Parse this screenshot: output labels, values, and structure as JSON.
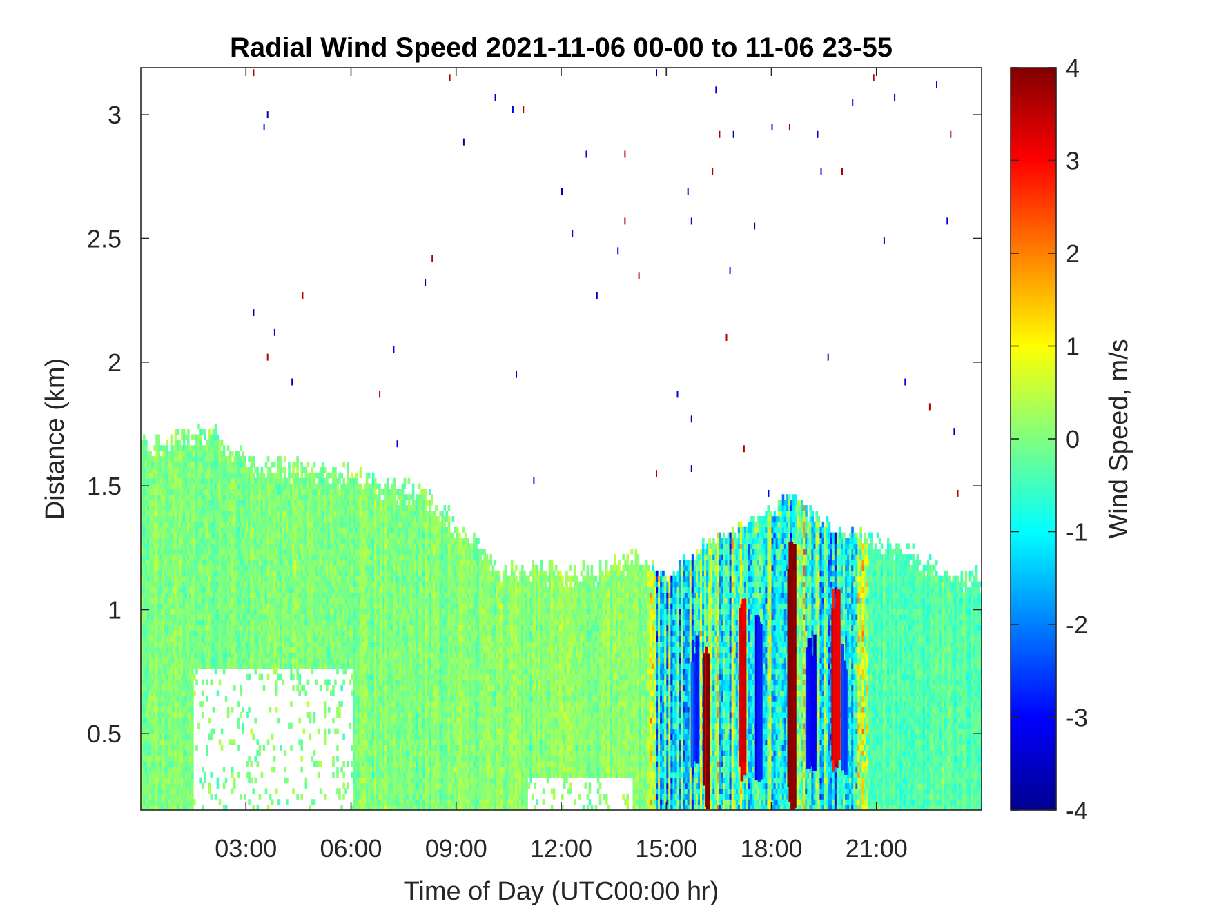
{
  "chart_data": {
    "type": "heatmap",
    "title": "Radial Wind Speed 2021-11-06 00-00 to 11-06 23-55",
    "xlabel": "Time of Day (UTC00:00 hr)",
    "ylabel": "Distance (km)",
    "colorbar_label": "Wind Speed, m/s",
    "x_range_hours": [
      0,
      24
    ],
    "y_range_km": [
      0.19,
      3.19
    ],
    "x_ticks": [
      {
        "hour": 3,
        "label": "03:00"
      },
      {
        "hour": 6,
        "label": "06:00"
      },
      {
        "hour": 9,
        "label": "09:00"
      },
      {
        "hour": 12,
        "label": "12:00"
      },
      {
        "hour": 15,
        "label": "15:00"
      },
      {
        "hour": 18,
        "label": "18:00"
      },
      {
        "hour": 21,
        "label": "21:00"
      }
    ],
    "y_ticks": [
      {
        "value": 0.5,
        "label": "0.5"
      },
      {
        "value": 1.0,
        "label": "1"
      },
      {
        "value": 1.5,
        "label": "1.5"
      },
      {
        "value": 2.0,
        "label": "2"
      },
      {
        "value": 2.5,
        "label": "2.5"
      },
      {
        "value": 3.0,
        "label": "3"
      }
    ],
    "color_range": [
      -4,
      4
    ],
    "colormap": "jet",
    "colorbar_ticks": [
      {
        "value": 4,
        "label": "4"
      },
      {
        "value": 3,
        "label": "3"
      },
      {
        "value": 2,
        "label": "2"
      },
      {
        "value": 1,
        "label": "1"
      },
      {
        "value": 0,
        "label": "0"
      },
      {
        "value": -1,
        "label": "-1"
      },
      {
        "value": -2,
        "label": "-2"
      },
      {
        "value": -3,
        "label": "-3"
      },
      {
        "value": -4,
        "label": "-4"
      }
    ],
    "signal_top_km": [
      [
        0.0,
        1.67
      ],
      [
        1.0,
        1.7
      ],
      [
        2.0,
        1.72
      ],
      [
        3.0,
        1.6
      ],
      [
        4.0,
        1.58
      ],
      [
        5.0,
        1.57
      ],
      [
        6.0,
        1.55
      ],
      [
        7.0,
        1.5
      ],
      [
        8.0,
        1.48
      ],
      [
        9.0,
        1.35
      ],
      [
        10.0,
        1.18
      ],
      [
        11.0,
        1.17
      ],
      [
        12.0,
        1.16
      ],
      [
        13.0,
        1.15
      ],
      [
        14.0,
        1.22
      ],
      [
        15.0,
        1.12
      ],
      [
        16.0,
        1.25
      ],
      [
        17.0,
        1.32
      ],
      [
        18.0,
        1.38
      ],
      [
        18.5,
        1.45
      ],
      [
        19.0,
        1.38
      ],
      [
        20.0,
        1.3
      ],
      [
        21.0,
        1.28
      ],
      [
        22.0,
        1.24
      ],
      [
        23.0,
        1.14
      ],
      [
        24.0,
        1.13
      ]
    ],
    "regions_m_per_s": [
      {
        "hours": [
          0,
          9
        ],
        "km": [
          0.19,
          1.7
        ],
        "mean_speed": 0.0
      },
      {
        "hours": [
          9,
          14.5
        ],
        "km": [
          0.19,
          1.18
        ],
        "mean_speed": 0.1
      },
      {
        "hours": [
          14.5,
          20.5
        ],
        "km": [
          0.19,
          1.45
        ],
        "mean_speed": -0.5
      },
      {
        "hours": [
          20.5,
          24
        ],
        "km": [
          0.19,
          1.28
        ],
        "mean_speed": -0.3
      }
    ],
    "strong_updrafts": [
      {
        "hour": 16.1,
        "km": [
          0.19,
          0.9
        ],
        "speed": 3.5
      },
      {
        "hour": 17.1,
        "km": [
          0.3,
          1.05
        ],
        "speed": 3.2
      },
      {
        "hour": 18.5,
        "km": [
          0.19,
          1.3
        ],
        "speed": 3.9
      },
      {
        "hour": 19.8,
        "km": [
          0.3,
          1.1
        ],
        "speed": 3.3
      }
    ],
    "strong_downdrafts": [
      {
        "hour": 15.8,
        "km": [
          0.3,
          0.9
        ],
        "speed": -2.6
      },
      {
        "hour": 17.6,
        "km": [
          0.3,
          1.0
        ],
        "speed": -2.8
      },
      {
        "hour": 19.1,
        "km": [
          0.3,
          0.9
        ],
        "speed": -3.2
      },
      {
        "hour": 20.1,
        "km": [
          0.3,
          0.9
        ],
        "speed": -2.5
      }
    ],
    "low_level_gaps": [
      {
        "hours": [
          1.5,
          6.0
        ],
        "km": [
          0.19,
          0.75
        ]
      },
      {
        "hours": [
          11.0,
          14.0
        ],
        "km": [
          0.19,
          0.32
        ]
      }
    ],
    "scattered_points": [
      [
        3.2,
        3.17
      ],
      [
        3.6,
        3.0
      ],
      [
        3.5,
        2.95
      ],
      [
        8.8,
        3.15
      ],
      [
        10.1,
        3.07
      ],
      [
        10.6,
        3.02
      ],
      [
        10.9,
        3.02
      ],
      [
        9.2,
        2.89
      ],
      [
        12.7,
        2.84
      ],
      [
        13.8,
        2.84
      ],
      [
        14.7,
        3.17
      ],
      [
        16.4,
        3.1
      ],
      [
        16.5,
        2.92
      ],
      [
        16.9,
        2.92
      ],
      [
        18.0,
        2.95
      ],
      [
        18.5,
        2.95
      ],
      [
        19.3,
        2.92
      ],
      [
        20.3,
        3.05
      ],
      [
        20.9,
        3.15
      ],
      [
        21.5,
        3.07
      ],
      [
        22.7,
        3.12
      ],
      [
        23.1,
        2.92
      ],
      [
        12.0,
        2.69
      ],
      [
        12.3,
        2.52
      ],
      [
        13.8,
        2.57
      ],
      [
        15.6,
        2.69
      ],
      [
        15.7,
        2.57
      ],
      [
        16.3,
        2.77
      ],
      [
        17.5,
        2.55
      ],
      [
        19.4,
        2.77
      ],
      [
        20.0,
        2.77
      ],
      [
        21.2,
        2.49
      ],
      [
        23.0,
        2.57
      ],
      [
        8.3,
        2.42
      ],
      [
        8.1,
        2.32
      ],
      [
        13.6,
        2.45
      ],
      [
        14.2,
        2.35
      ],
      [
        13.0,
        2.27
      ],
      [
        16.8,
        2.37
      ],
      [
        4.6,
        2.27
      ],
      [
        3.2,
        2.2
      ],
      [
        3.8,
        2.12
      ],
      [
        3.6,
        2.02
      ],
      [
        4.3,
        1.92
      ],
      [
        7.2,
        2.05
      ],
      [
        6.8,
        1.87
      ],
      [
        10.7,
        1.95
      ],
      [
        15.3,
        1.87
      ],
      [
        16.7,
        2.1
      ],
      [
        19.6,
        2.02
      ],
      [
        21.8,
        1.92
      ],
      [
        22.5,
        1.82
      ],
      [
        15.7,
        1.77
      ],
      [
        7.3,
        1.67
      ],
      [
        17.2,
        1.65
      ],
      [
        23.2,
        1.72
      ],
      [
        11.2,
        1.52
      ],
      [
        14.7,
        1.55
      ],
      [
        15.7,
        1.57
      ],
      [
        17.9,
        1.47
      ],
      [
        23.3,
        1.47
      ]
    ]
  }
}
